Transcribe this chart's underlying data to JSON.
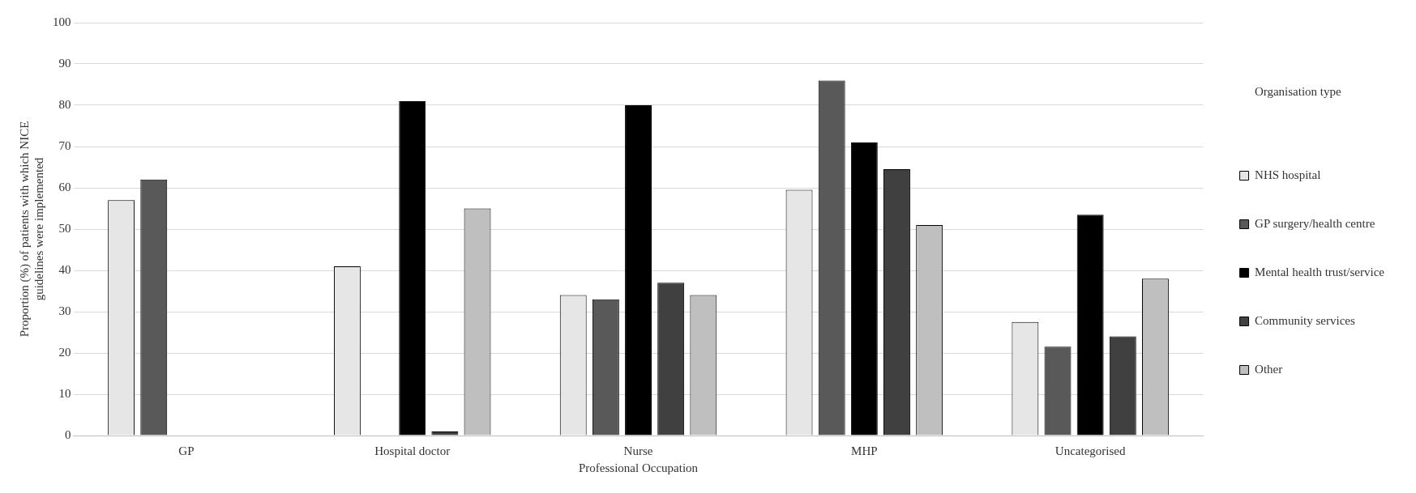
{
  "chart_data": {
    "type": "bar",
    "xlabel": "Professional Occupation",
    "ylabel": "Proportion (%) of patients with which NICE guidelines were implemented",
    "legend_title": "Organisation type",
    "categories": [
      "GP",
      "Hospital doctor",
      "Nurse",
      "MHP",
      "Uncategorised"
    ],
    "series": [
      {
        "name": "NHS hospital",
        "color": "#e6e6e6",
        "values": [
          57,
          41,
          34,
          59.5,
          27.5
        ]
      },
      {
        "name": "GP surgery/health centre",
        "color": "#595959",
        "values": [
          62,
          null,
          33,
          86,
          21.5
        ]
      },
      {
        "name": "Mental health trust/service",
        "color": "#000000",
        "values": [
          null,
          81,
          80,
          71,
          53.5
        ]
      },
      {
        "name": "Community services",
        "color": "#404040",
        "values": [
          null,
          1,
          37,
          64.5,
          24
        ]
      },
      {
        "name": "Other",
        "color": "#bfbfbf",
        "values": [
          null,
          55,
          34,
          51,
          38
        ]
      }
    ],
    "ylim": [
      0,
      100
    ],
    "yticks": [
      0,
      10,
      20,
      30,
      40,
      50,
      60,
      70,
      80,
      90,
      100
    ],
    "grid": "y",
    "legend": "right"
  }
}
